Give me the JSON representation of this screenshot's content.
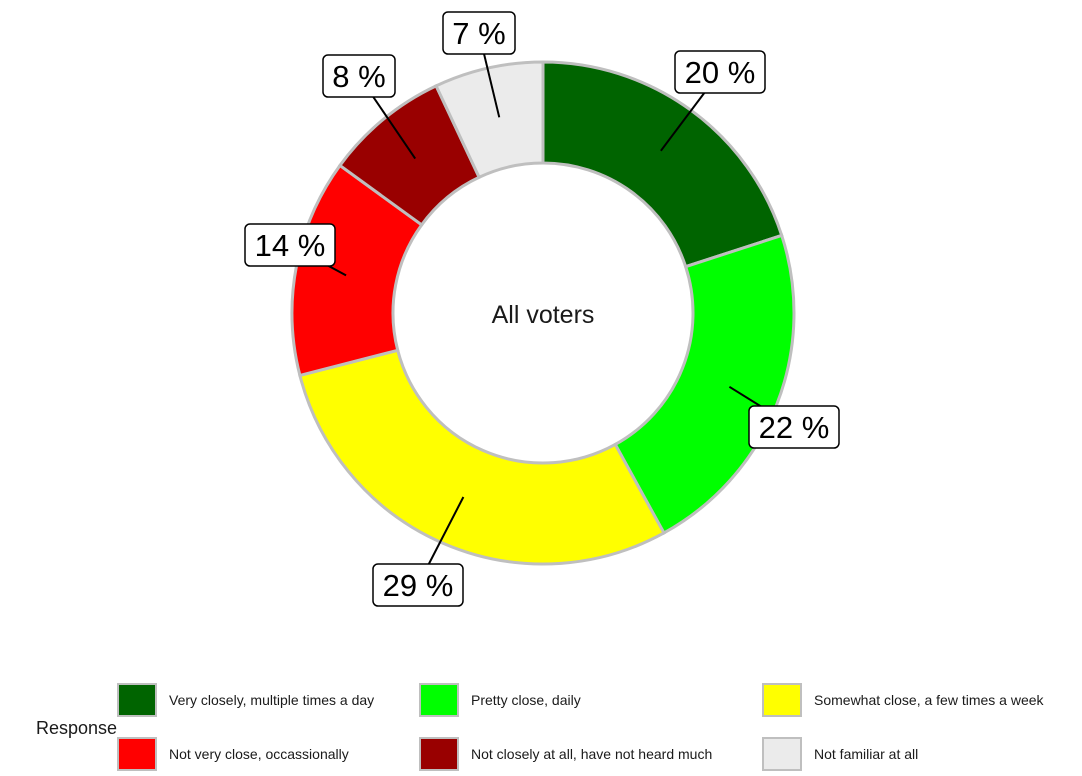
{
  "chart_data": {
    "type": "pie",
    "donut": true,
    "center_label": "All voters",
    "legend_title": "Response",
    "legend_position": "bottom",
    "slices": [
      {
        "name": "Very closely, multiple times a day",
        "value": 20,
        "label": "20 %",
        "color": "#006400"
      },
      {
        "name": "Pretty close, daily",
        "value": 22,
        "label": "22 %",
        "color": "#00ff00"
      },
      {
        "name": "Somewhat close, a few times a week",
        "value": 29,
        "label": "29 %",
        "color": "#ffff00"
      },
      {
        "name": "Not very close, occassionally",
        "value": 14,
        "label": "14 %",
        "color": "#ff0000"
      },
      {
        "name": "Not closely at all, have not heard much",
        "value": 8,
        "label": "8 %",
        "color": "#990000"
      },
      {
        "name": "Not familiar at all",
        "value": 7,
        "label": "7 %",
        "color": "#ebebeb"
      }
    ]
  }
}
